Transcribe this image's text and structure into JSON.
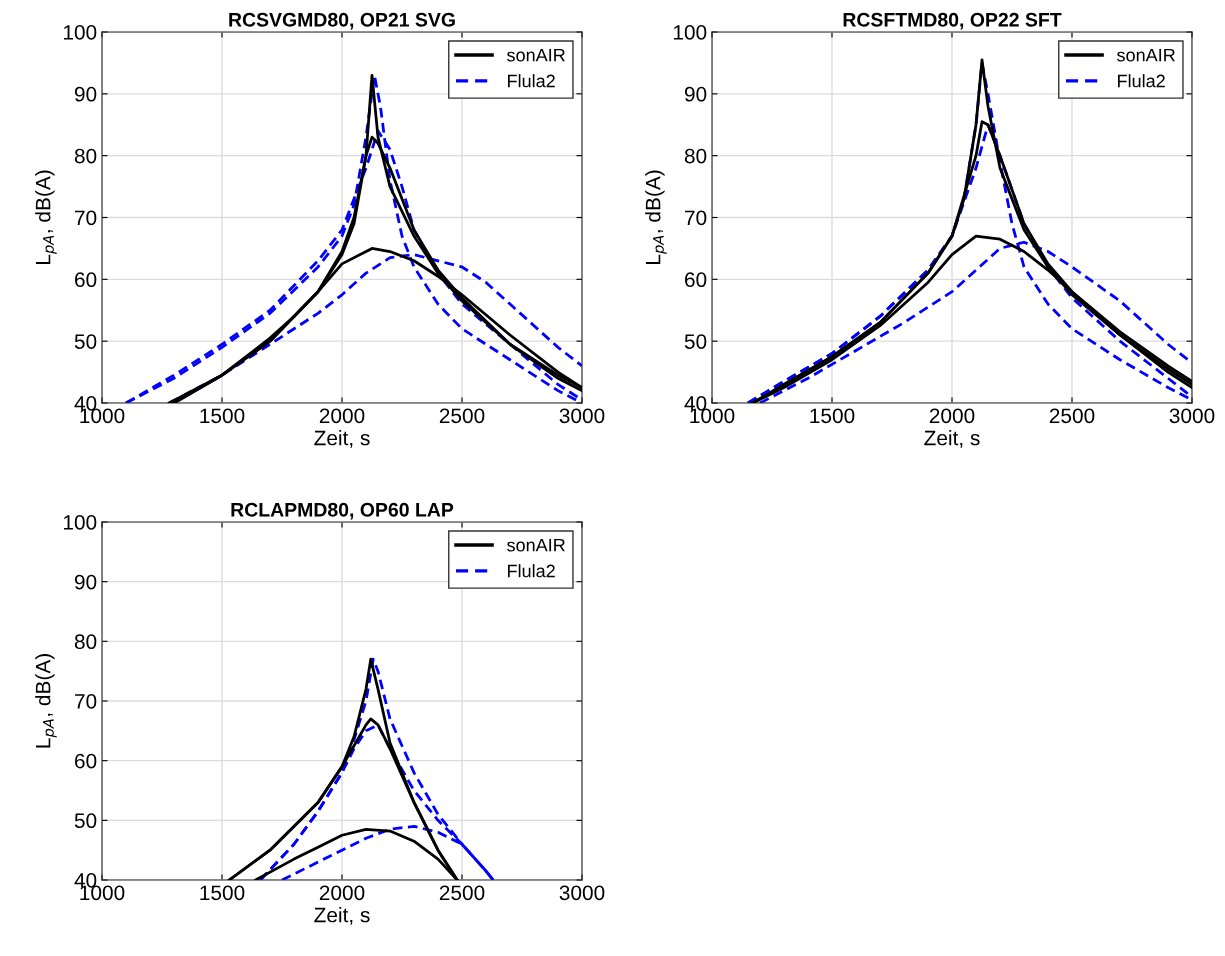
{
  "chart_data": [
    {
      "type": "line",
      "title": "RCSVGMD80, OP21 SVG",
      "xlabel": "Zeit, s",
      "ylabel": "L$_{pA}$, dB(A)",
      "xlim": [
        1000,
        3000
      ],
      "xticks": [
        1000,
        1500,
        2000,
        2500,
        3000
      ],
      "ylim": [
        40,
        100
      ],
      "yticks": [
        40,
        50,
        60,
        70,
        80,
        90,
        100
      ],
      "grid": true,
      "legend": "top right",
      "series": [
        {
          "name": "sonAIR",
          "color": "#000000",
          "line_style": "solid",
          "x": [
            1300,
            1500,
            1700,
            1900,
            2000,
            2050,
            2100,
            2125,
            2150,
            2200,
            2300,
            2400,
            2500,
            2700,
            2900,
            3000
          ],
          "values": [
            40,
            44.5,
            50,
            58,
            64,
            69,
            80,
            93,
            83,
            75,
            67,
            61,
            56.5,
            49.5,
            44,
            42
          ]
        },
        {
          "color": "#000000",
          "line_style": "solid",
          "x": [
            1300,
            1500,
            1700,
            1900,
            2000,
            2050,
            2100,
            2125,
            2150,
            2200,
            2300,
            2400,
            2500,
            2700,
            2900,
            3000
          ],
          "values": [
            40,
            44.5,
            50,
            58,
            64.5,
            70,
            80,
            83,
            82,
            78,
            68,
            61.5,
            57,
            49.5,
            44.5,
            42.5
          ]
        },
        {
          "color": "#000000",
          "line_style": "solid",
          "x": [
            1280,
            1500,
            1700,
            1800,
            1900,
            2000,
            2125,
            2200,
            2300,
            2400,
            2500,
            2700,
            2900,
            3000
          ],
          "values": [
            40,
            44.5,
            50.5,
            54,
            58,
            62.5,
            65,
            64.5,
            63,
            60.5,
            57.5,
            51,
            45,
            42.5
          ]
        },
        {
          "name": "Flula2",
          "color": "#0000ff",
          "line_style": "dashed",
          "x": [
            1100,
            1300,
            1500,
            1700,
            1900,
            2000,
            2050,
            2100,
            2135,
            2160,
            2200,
            2250,
            2300,
            2400,
            2500,
            2700,
            2900,
            3000
          ],
          "values": [
            40,
            44,
            49,
            54.5,
            62,
            67,
            72,
            83,
            93,
            88,
            76,
            67,
            62,
            56,
            52,
            47,
            42,
            40
          ]
        },
        {
          "color": "#0000ff",
          "line_style": "dashed",
          "x": [
            1100,
            1300,
            1500,
            1700,
            1900,
            2000,
            2100,
            2150,
            2200,
            2250,
            2300,
            2400,
            2500,
            2700,
            2900,
            3000
          ],
          "values": [
            40,
            44.5,
            49.5,
            55,
            63,
            68,
            78,
            84,
            81,
            75,
            68,
            61,
            56,
            49.5,
            43,
            40.5
          ]
        },
        {
          "color": "#0000ff",
          "line_style": "dashed",
          "x": [
            1280,
            1500,
            1700,
            1900,
            2000,
            2100,
            2200,
            2300,
            2400,
            2500,
            2600,
            2700,
            2800,
            2900,
            3000
          ],
          "values": [
            40,
            44.5,
            49.5,
            54.5,
            57.5,
            61,
            63.5,
            64,
            63,
            62,
            59.5,
            56,
            52.5,
            49,
            46
          ]
        }
      ]
    },
    {
      "type": "line",
      "title": "RCSFTMD80, OP22 SFT",
      "xlabel": "Zeit, s",
      "ylabel": "L$_{pA}$, dB(A)",
      "xlim": [
        1000,
        3000
      ],
      "xticks": [
        1000,
        1500,
        2000,
        2500,
        3000
      ],
      "ylim": [
        40,
        100
      ],
      "yticks": [
        40,
        50,
        60,
        70,
        80,
        90,
        100
      ],
      "grid": true,
      "legend": "top right",
      "series": [
        {
          "name": "sonAIR",
          "color": "#000000",
          "line_style": "solid",
          "x": [
            1170,
            1300,
            1500,
            1700,
            1900,
            2000,
            2050,
            2100,
            2125,
            2150,
            2200,
            2300,
            2400,
            2500,
            2700,
            2900,
            3000
          ],
          "values": [
            40,
            43,
            47.5,
            53,
            61,
            67,
            73,
            85,
            95.5,
            88,
            78,
            68,
            62,
            57.5,
            51,
            45,
            42.5
          ]
        },
        {
          "color": "#000000",
          "line_style": "solid",
          "x": [
            1170,
            1300,
            1500,
            1700,
            1900,
            2000,
            2100,
            2125,
            2150,
            2200,
            2300,
            2400,
            2500,
            2700,
            2900,
            3000
          ],
          "values": [
            40,
            43,
            47.5,
            53,
            61,
            67,
            80,
            85.5,
            85,
            80,
            69,
            62.5,
            58,
            51,
            45.5,
            43
          ]
        },
        {
          "color": "#000000",
          "line_style": "solid",
          "x": [
            1170,
            1300,
            1500,
            1700,
            1900,
            2000,
            2100,
            2200,
            2300,
            2400,
            2500,
            2700,
            2900,
            3000
          ],
          "values": [
            40,
            42.5,
            47,
            52.5,
            59.5,
            64,
            67,
            66.5,
            64.5,
            61.5,
            58,
            51.5,
            46,
            43.5
          ]
        },
        {
          "name": "Flula2",
          "color": "#0000ff",
          "line_style": "dashed",
          "x": [
            1150,
            1300,
            1500,
            1700,
            1900,
            2000,
            2050,
            2100,
            2125,
            2150,
            2200,
            2250,
            2300,
            2400,
            2500,
            2700,
            2900,
            3000
          ],
          "values": [
            40,
            43.5,
            48,
            54,
            61.5,
            67,
            73,
            85,
            95,
            90,
            79,
            69,
            62,
            56,
            52,
            47,
            42.5,
            40.5
          ]
        },
        {
          "color": "#0000ff",
          "line_style": "dashed",
          "x": [
            1150,
            1300,
            1500,
            1700,
            1900,
            2000,
            2100,
            2150,
            2200,
            2300,
            2400,
            2500,
            2700,
            2900,
            3000
          ],
          "values": [
            40,
            43.5,
            48,
            54,
            61.5,
            67,
            78,
            85,
            80,
            69,
            62,
            57,
            50,
            44,
            41
          ]
        },
        {
          "color": "#0000ff",
          "line_style": "dashed",
          "x": [
            1200,
            1400,
            1600,
            1800,
            2000,
            2100,
            2200,
            2300,
            2400,
            2500,
            2700,
            2900,
            3000
          ],
          "values": [
            40,
            44,
            48.5,
            53,
            58,
            61.5,
            65,
            66,
            64.5,
            62,
            56.5,
            49.5,
            46.5
          ]
        }
      ]
    },
    {
      "type": "line",
      "title": "RCLAPMD80, OP60 LAP",
      "xlabel": "Zeit, s",
      "ylabel": "L$_{pA}$, dB(A)",
      "xlim": [
        1000,
        3000
      ],
      "xticks": [
        1000,
        1500,
        2000,
        2500,
        3000
      ],
      "ylim": [
        40,
        100
      ],
      "yticks": [
        40,
        50,
        60,
        70,
        80,
        90,
        100
      ],
      "grid": true,
      "legend": "top right",
      "series": [
        {
          "name": "sonAIR",
          "color": "#000000",
          "line_style": "solid",
          "x": [
            1530,
            1700,
            1900,
            2000,
            2050,
            2100,
            2120,
            2150,
            2200,
            2300,
            2400,
            2480
          ],
          "values": [
            40,
            45,
            53,
            59,
            64,
            72,
            77,
            72,
            63,
            53,
            45,
            40
          ]
        },
        {
          "color": "#000000",
          "line_style": "solid",
          "x": [
            1530,
            1700,
            1900,
            2000,
            2100,
            2120,
            2150,
            2200,
            2300,
            2400,
            2480
          ],
          "values": [
            40,
            45,
            53,
            59,
            66,
            67,
            66,
            62,
            53,
            45,
            40
          ]
        },
        {
          "color": "#000000",
          "line_style": "solid",
          "x": [
            1640,
            1800,
            1900,
            2000,
            2100,
            2200,
            2300,
            2400,
            2480
          ],
          "values": [
            40,
            43.5,
            45.5,
            47.5,
            48.5,
            48.2,
            46.5,
            43.5,
            40
          ]
        },
        {
          "name": "Flula2",
          "color": "#0000ff",
          "line_style": "dashed",
          "x": [
            1660,
            1800,
            1900,
            2000,
            2050,
            2100,
            2130,
            2150,
            2200,
            2300,
            2400,
            2500,
            2600,
            2630
          ],
          "values": [
            40,
            46,
            51.5,
            58,
            63.5,
            70,
            77,
            75,
            67,
            58,
            51,
            46,
            41.5,
            40
          ]
        },
        {
          "color": "#0000ff",
          "line_style": "dashed",
          "x": [
            1660,
            1800,
            1900,
            2000,
            2050,
            2100,
            2150,
            2200,
            2300,
            2400,
            2500,
            2600,
            2630
          ],
          "values": [
            40,
            46,
            51.5,
            58,
            62,
            65,
            66,
            62,
            55,
            50,
            46,
            41.5,
            40
          ]
        },
        {
          "color": "#0000ff",
          "line_style": "dashed",
          "x": [
            1750,
            1900,
            2000,
            2100,
            2200,
            2300,
            2400,
            2500,
            2600,
            2630
          ],
          "values": [
            40,
            43,
            45,
            47,
            48.5,
            49,
            48,
            46,
            41.5,
            40
          ]
        }
      ]
    }
  ]
}
